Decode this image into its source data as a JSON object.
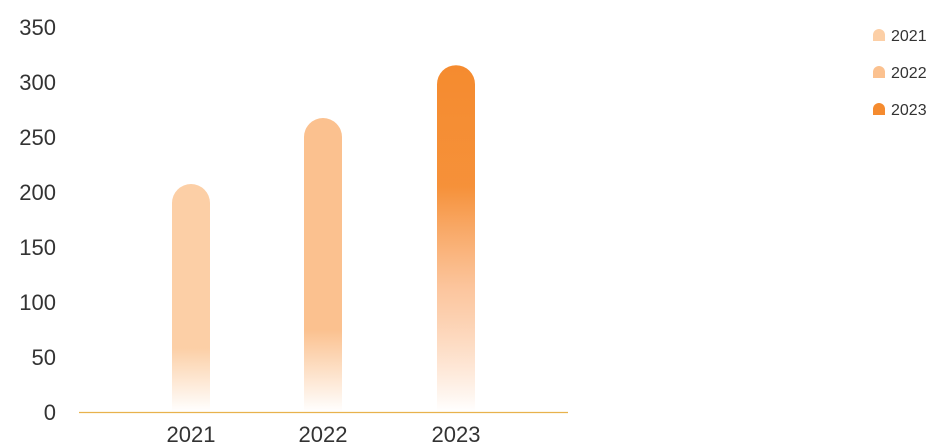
{
  "chart_data": {
    "type": "bar",
    "categories": [
      "2021",
      "2022",
      "2023"
    ],
    "values": [
      190,
      250,
      298
    ],
    "ylim": [
      0,
      350
    ],
    "yticks": [
      0,
      50,
      100,
      150,
      200,
      250,
      300,
      350
    ],
    "grid": false,
    "legend_position": "top-right",
    "legend": [
      "2021",
      "2022",
      "2023"
    ],
    "colors": [
      "#fccfa6",
      "#fbc18f",
      "#f58b2f"
    ],
    "axis_color": "#e8b24d"
  }
}
